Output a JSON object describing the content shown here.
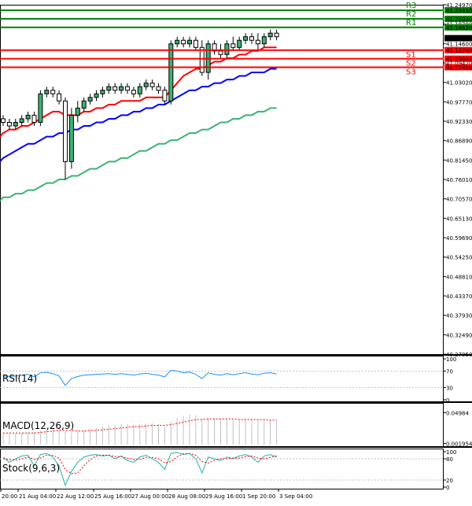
{
  "chart_data": {
    "type": "candlestick",
    "symbol": "",
    "price_axis": {
      "range": [
        40.2705,
        41.2497
      ],
      "tick_labels": [
        "41.24970",
        "41.19790",
        "41.14600",
        "41.09420",
        "41.03020",
        "40.97770",
        "40.92330",
        "40.86890",
        "40.81450",
        "40.76010",
        "40.70570",
        "40.65130",
        "40.59690",
        "40.54250",
        "40.48810",
        "40.43370",
        "40.37930",
        "40.32490",
        "40.27050"
      ]
    },
    "levels": [
      {
        "name": "R3",
        "value": 41.2341,
        "label": "41.23410",
        "color": "#008000"
      },
      {
        "name": "R2",
        "value": 41.2102,
        "label": "41.21020",
        "color": "#008000"
      },
      {
        "name": "R1",
        "value": 41.1862,
        "label": "41.18620",
        "color": "#008000"
      },
      {
        "name": "S1",
        "value": 41.1224,
        "label": "41.12240",
        "color": "#ff0000"
      },
      {
        "name": "S2",
        "value": 41.0984,
        "label": "41.09840",
        "color": "#ff0000"
      },
      {
        "name": "S3",
        "value": 41.0745,
        "label": "41.07450",
        "color": "#ff0000"
      }
    ],
    "current_price": {
      "value": 41.156,
      "label": "41.15600"
    },
    "x_labels": [
      "20:00",
      "21 Aug 04:00",
      "22 Aug 12:00",
      "25 Aug 16:00",
      "27 Aug 00:00",
      "28 Aug 08:00",
      "29 Aug 16:00",
      "1 Sep 20:00",
      "3 Sep 04:00"
    ],
    "candles": [
      [
        40.93,
        40.94,
        40.91,
        40.92
      ],
      [
        40.92,
        40.93,
        40.9,
        40.91
      ],
      [
        40.91,
        40.93,
        40.9,
        40.92
      ],
      [
        40.92,
        40.94,
        40.91,
        40.93
      ],
      [
        40.93,
        40.95,
        40.92,
        40.94
      ],
      [
        40.94,
        40.95,
        40.91,
        40.92
      ],
      [
        40.92,
        41.01,
        40.91,
        41.0
      ],
      [
        41.0,
        41.02,
        40.99,
        41.01
      ],
      [
        41.01,
        41.02,
        40.99,
        41.0
      ],
      [
        41.0,
        41.01,
        40.97,
        40.98
      ],
      [
        40.98,
        40.99,
        40.76,
        40.81
      ],
      [
        40.81,
        40.96,
        40.79,
        40.94
      ],
      [
        40.94,
        40.98,
        40.92,
        40.96
      ],
      [
        40.96,
        40.99,
        40.95,
        40.98
      ],
      [
        40.98,
        41.0,
        40.97,
        40.99
      ],
      [
        40.99,
        41.01,
        40.98,
        41.0
      ],
      [
        41.0,
        41.02,
        40.99,
        41.01
      ],
      [
        41.01,
        41.03,
        41.0,
        41.02
      ],
      [
        41.02,
        41.03,
        41.0,
        41.01
      ],
      [
        41.01,
        41.03,
        41.0,
        41.02
      ],
      [
        41.02,
        41.03,
        41.0,
        41.01
      ],
      [
        41.01,
        41.02,
        40.99,
        41.0
      ],
      [
        41.0,
        41.03,
        40.99,
        41.02
      ],
      [
        41.02,
        41.04,
        41.01,
        41.03
      ],
      [
        41.03,
        41.04,
        41.01,
        41.02
      ],
      [
        41.02,
        41.03,
        41.0,
        41.01
      ],
      [
        41.01,
        41.02,
        40.97,
        40.98
      ],
      [
        40.98,
        41.15,
        40.97,
        41.14
      ],
      [
        41.14,
        41.16,
        41.13,
        41.15
      ],
      [
        41.15,
        41.16,
        41.13,
        41.14
      ],
      [
        41.14,
        41.16,
        41.13,
        41.15
      ],
      [
        41.15,
        41.16,
        41.12,
        41.13
      ],
      [
        41.13,
        41.15,
        41.05,
        41.06
      ],
      [
        41.06,
        41.15,
        41.04,
        41.14
      ],
      [
        41.14,
        41.15,
        41.11,
        41.12
      ],
      [
        41.12,
        41.14,
        41.1,
        41.11
      ],
      [
        41.11,
        41.15,
        41.1,
        41.14
      ],
      [
        41.14,
        41.16,
        41.12,
        41.13
      ],
      [
        41.13,
        41.16,
        41.12,
        41.15
      ],
      [
        41.15,
        41.17,
        41.14,
        41.16
      ],
      [
        41.16,
        41.17,
        41.14,
        41.15
      ],
      [
        41.15,
        41.17,
        41.12,
        41.14
      ],
      [
        41.14,
        41.17,
        41.13,
        41.16
      ],
      [
        41.16,
        41.18,
        41.15,
        41.17
      ],
      [
        41.17,
        41.18,
        41.15,
        41.16
      ]
    ],
    "moving_averages": [
      {
        "color": "#ff0000",
        "values": [
          40.89,
          40.9,
          40.9,
          40.91,
          40.91,
          40.92,
          40.93,
          40.94,
          40.95,
          40.95,
          40.94,
          40.94,
          40.94,
          40.95,
          40.95,
          40.96,
          40.96,
          40.97,
          40.97,
          40.98,
          40.98,
          40.98,
          40.98,
          40.99,
          40.99,
          40.99,
          40.99,
          41.01,
          41.03,
          41.05,
          41.06,
          41.07,
          41.07,
          41.08,
          41.09,
          41.09,
          41.1,
          41.1,
          41.11,
          41.11,
          41.12,
          41.12,
          41.13,
          41.13,
          41.13
        ]
      },
      {
        "color": "#0000ff",
        "values": [
          40.82,
          40.83,
          40.84,
          40.85,
          40.86,
          40.86,
          40.87,
          40.88,
          40.88,
          40.89,
          40.89,
          40.9,
          40.9,
          40.91,
          40.91,
          40.92,
          40.92,
          40.93,
          40.93,
          40.94,
          40.94,
          40.95,
          40.95,
          40.96,
          40.96,
          40.97,
          40.97,
          40.98,
          40.99,
          41.0,
          41.01,
          41.01,
          41.02,
          41.02,
          41.03,
          41.03,
          41.04,
          41.04,
          41.05,
          41.05,
          41.06,
          41.06,
          41.06,
          41.07,
          41.07
        ]
      },
      {
        "color": "#3cb371",
        "values": [
          40.71,
          40.71,
          40.72,
          40.72,
          40.73,
          40.73,
          40.74,
          40.75,
          40.75,
          40.76,
          40.76,
          40.77,
          40.77,
          40.78,
          40.79,
          40.79,
          40.8,
          40.81,
          40.81,
          40.82,
          40.82,
          40.83,
          40.84,
          40.84,
          40.85,
          40.86,
          40.86,
          40.87,
          40.87,
          40.88,
          40.89,
          40.89,
          40.9,
          40.9,
          40.91,
          40.92,
          40.92,
          40.93,
          40.93,
          40.94,
          40.94,
          40.95,
          40.95,
          40.96,
          40.96
        ]
      }
    ],
    "indicators": [
      {
        "name": "RSI(14)",
        "tick_labels": [
          "100",
          "70",
          "30",
          "0"
        ],
        "range": [
          0,
          100
        ],
        "levels": [
          70,
          30
        ],
        "line_color": "#1e90ff",
        "values": [
          58,
          57,
          58,
          60,
          62,
          56,
          66,
          67,
          64,
          58,
          35,
          52,
          57,
          60,
          61,
          62,
          63,
          64,
          62,
          64,
          62,
          60,
          63,
          65,
          62,
          60,
          56,
          72,
          70,
          66,
          68,
          62,
          52,
          66,
          62,
          60,
          64,
          61,
          64,
          66,
          63,
          61,
          65,
          66,
          63
        ]
      },
      {
        "name": "MACD(12,26,9)",
        "tick_labels": [
          "0.04984",
          "0.001954"
        ],
        "range": [
          0,
          0.06
        ],
        "histogram_color": "#c0c0c0",
        "signal_color": "#ff0000",
        "histogram": [
          0.018,
          0.017,
          0.017,
          0.018,
          0.019,
          0.019,
          0.022,
          0.025,
          0.027,
          0.027,
          0.02,
          0.019,
          0.02,
          0.022,
          0.024,
          0.026,
          0.028,
          0.03,
          0.031,
          0.032,
          0.032,
          0.031,
          0.032,
          0.033,
          0.033,
          0.032,
          0.029,
          0.036,
          0.042,
          0.045,
          0.047,
          0.046,
          0.04,
          0.041,
          0.041,
          0.04,
          0.04,
          0.039,
          0.039,
          0.04,
          0.039,
          0.038,
          0.038,
          0.039,
          0.038
        ],
        "signal": [
          0.018,
          0.018,
          0.018,
          0.018,
          0.018,
          0.018,
          0.019,
          0.02,
          0.021,
          0.022,
          0.022,
          0.022,
          0.021,
          0.021,
          0.022,
          0.022,
          0.023,
          0.024,
          0.025,
          0.026,
          0.027,
          0.028,
          0.028,
          0.029,
          0.03,
          0.03,
          0.03,
          0.031,
          0.033,
          0.035,
          0.037,
          0.039,
          0.039,
          0.04,
          0.04,
          0.04,
          0.04,
          0.04,
          0.039,
          0.039,
          0.039,
          0.039,
          0.039,
          0.038,
          0.038
        ]
      },
      {
        "name": "Stock(9,6,3)",
        "tick_labels": [
          "100",
          "80",
          "20",
          "0"
        ],
        "range": [
          0,
          100
        ],
        "levels": [
          80,
          20
        ],
        "main_color": "#20b2aa",
        "signal_color": "#ff0000",
        "main": [
          85,
          70,
          80,
          88,
          90,
          60,
          92,
          95,
          85,
          60,
          5,
          45,
          70,
          85,
          90,
          92,
          88,
          90,
          80,
          88,
          75,
          70,
          85,
          90,
          80,
          70,
          50,
          95,
          98,
          92,
          95,
          80,
          40,
          85,
          80,
          75,
          85,
          80,
          88,
          92,
          85,
          70,
          88,
          92,
          85
        ],
        "signal": [
          80,
          78,
          76,
          80,
          85,
          78,
          82,
          90,
          90,
          82,
          50,
          38,
          40,
          60,
          78,
          88,
          90,
          90,
          86,
          86,
          82,
          78,
          78,
          84,
          84,
          80,
          68,
          72,
          86,
          94,
          95,
          90,
          72,
          68,
          76,
          80,
          80,
          82,
          82,
          86,
          88,
          82,
          80,
          84,
          88
        ]
      }
    ]
  }
}
